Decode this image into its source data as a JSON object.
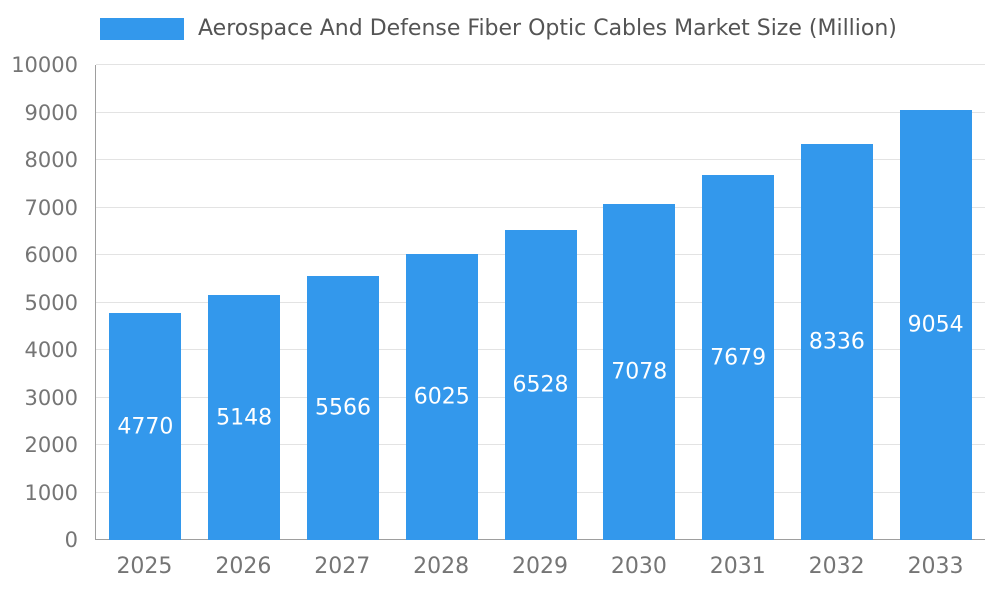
{
  "chart_data": {
    "type": "bar",
    "title": "Aerospace And Defense Fiber Optic Cables Market Size (Million)",
    "categories": [
      "2025",
      "2026",
      "2027",
      "2028",
      "2029",
      "2030",
      "2031",
      "2032",
      "2033"
    ],
    "values": [
      4770,
      5148,
      5566,
      6025,
      6528,
      7078,
      7679,
      8336,
      9054
    ],
    "xlabel": "",
    "ylabel": "",
    "ylim": [
      0,
      10000
    ],
    "ytick_step": 1000,
    "grid": true,
    "legend_position": "top",
    "colors": {
      "bar": "#3398EC",
      "value_label": "#ffffff",
      "axis_line": "#9e9e9e",
      "gridline": "#e3e3e3",
      "tick_label": "#757575",
      "title_text": "#545454"
    }
  }
}
